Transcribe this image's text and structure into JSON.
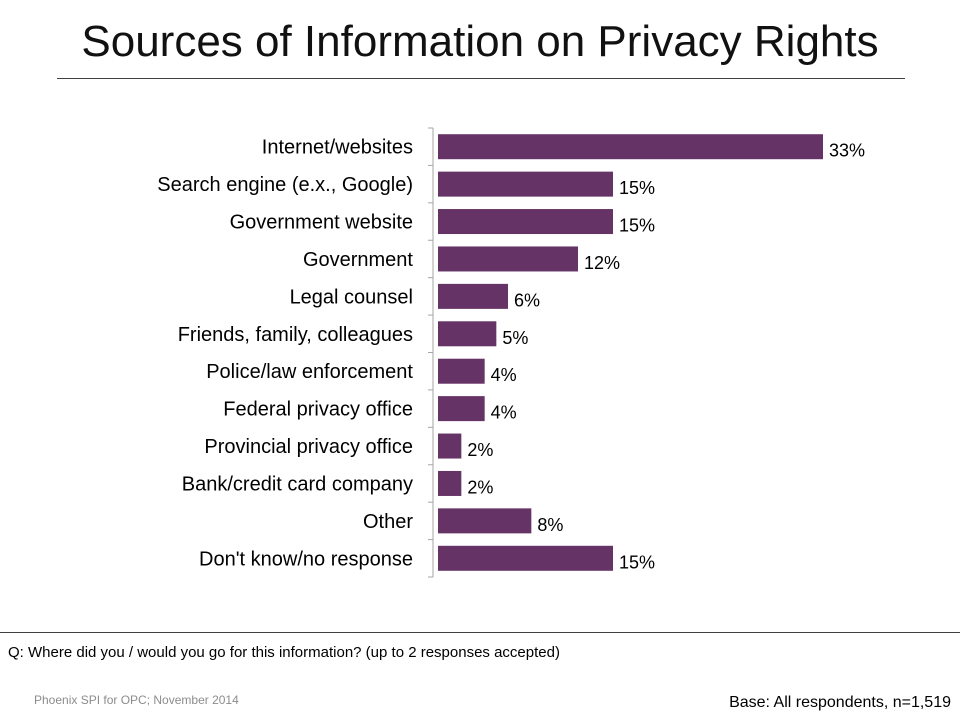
{
  "title": "Sources of Information on Privacy Rights",
  "question": "Q: Where did you / would you go for this information? (up to 2 responses accepted)",
  "source": "Phoenix SPI for OPC; November 2014",
  "base": "Base: All respondents, n=1,519",
  "colors": {
    "bar": "#663366",
    "axis": "#a6a6a6"
  },
  "chart_data": {
    "type": "bar",
    "orientation": "horizontal",
    "categories": [
      "Internet/websites",
      "Search engine (e.x., Google)",
      "Government website",
      "Government",
      "Legal counsel",
      "Friends, family, colleagues",
      "Police/law enforcement",
      "Federal privacy office",
      "Provincial privacy office",
      "Bank/credit card company",
      "Other",
      "Don't know/no response"
    ],
    "values": [
      33,
      15,
      15,
      12,
      6,
      5,
      4,
      4,
      2,
      2,
      8,
      15
    ],
    "value_labels": [
      "33%",
      "15%",
      "15%",
      "12%",
      "6%",
      "5%",
      "4%",
      "4%",
      "2%",
      "2%",
      "8%",
      "15%"
    ],
    "unit": "%",
    "xlim": [
      0,
      33
    ],
    "grid": false,
    "legend": "none"
  }
}
